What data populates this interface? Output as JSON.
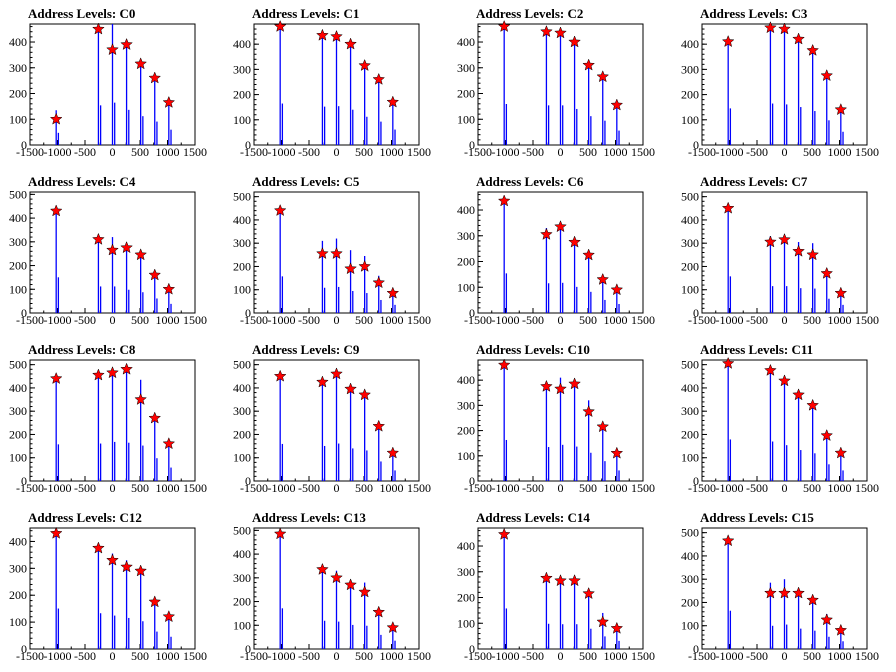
{
  "colors": {
    "spike": "#0000ff",
    "marker": "#ff0000",
    "axis": "#000000"
  },
  "chart_data": [
    {
      "title": "Address Levels: C0",
      "type": "bar",
      "xlim": [
        -1500,
        1500
      ],
      "ylim": [
        0,
        470
      ],
      "xticks": [
        -1500,
        -1000,
        -500,
        0,
        500,
        1000,
        1500
      ],
      "yticks": [
        0,
        100,
        200,
        300,
        400
      ],
      "spikes": [
        [
          -1024,
          135
        ],
        [
          -256,
          440
        ],
        [
          0,
          470
        ],
        [
          256,
          390
        ],
        [
          512,
          320
        ],
        [
          768,
          260
        ],
        [
          1024,
          170
        ]
      ],
      "markers": [
        [
          -1024,
          100
        ],
        [
          -256,
          450
        ],
        [
          0,
          370
        ],
        [
          256,
          390
        ],
        [
          512,
          315
        ],
        [
          768,
          260
        ],
        [
          1024,
          165
        ]
      ]
    },
    {
      "title": "Address Levels: C1",
      "type": "bar",
      "xlim": [
        -1500,
        1500
      ],
      "ylim": [
        0,
        480
      ],
      "xticks": [
        -1500,
        -1000,
        -500,
        0,
        500,
        1000,
        1500
      ],
      "yticks": [
        0,
        100,
        200,
        300,
        400
      ],
      "spikes": [
        [
          -1024,
          470
        ],
        [
          -256,
          435
        ],
        [
          0,
          440
        ],
        [
          256,
          400
        ],
        [
          512,
          320
        ],
        [
          768,
          265
        ],
        [
          1024,
          175
        ]
      ],
      "markers": [
        [
          -1024,
          470
        ],
        [
          -256,
          435
        ],
        [
          0,
          430
        ],
        [
          256,
          400
        ],
        [
          512,
          315
        ],
        [
          768,
          260
        ],
        [
          1024,
          170
        ]
      ]
    },
    {
      "title": "Address Levels: C2",
      "type": "bar",
      "xlim": [
        -1500,
        1500
      ],
      "ylim": [
        0,
        470
      ],
      "xticks": [
        -1500,
        -1000,
        -500,
        0,
        500,
        1000,
        1500
      ],
      "yticks": [
        0,
        100,
        200,
        300,
        400
      ],
      "spikes": [
        [
          -1024,
          455
        ],
        [
          -256,
          440
        ],
        [
          0,
          440
        ],
        [
          256,
          400
        ],
        [
          512,
          320
        ],
        [
          768,
          270
        ],
        [
          1024,
          160
        ]
      ],
      "markers": [
        [
          -1024,
          460
        ],
        [
          -256,
          440
        ],
        [
          0,
          435
        ],
        [
          256,
          400
        ],
        [
          512,
          310
        ],
        [
          768,
          265
        ],
        [
          1024,
          155
        ]
      ]
    },
    {
      "title": "Address Levels: C3",
      "type": "bar",
      "xlim": [
        -1500,
        1500
      ],
      "ylim": [
        0,
        480
      ],
      "xticks": [
        -1500,
        -1000,
        -500,
        0,
        500,
        1000,
        1500
      ],
      "yticks": [
        0,
        100,
        200,
        300,
        400
      ],
      "spikes": [
        [
          -1024,
          415
        ],
        [
          -256,
          470
        ],
        [
          0,
          460
        ],
        [
          256,
          430
        ],
        [
          512,
          385
        ],
        [
          768,
          280
        ],
        [
          1024,
          150
        ]
      ],
      "markers": [
        [
          -1024,
          410
        ],
        [
          -256,
          465
        ],
        [
          0,
          460
        ],
        [
          256,
          420
        ],
        [
          512,
          375
        ],
        [
          768,
          275
        ],
        [
          1024,
          140
        ]
      ]
    },
    {
      "title": "Address Levels: C4",
      "type": "bar",
      "xlim": [
        -1500,
        1500
      ],
      "ylim": [
        0,
        510
      ],
      "xticks": [
        -1500,
        -1000,
        -500,
        0,
        500,
        1000,
        1500
      ],
      "yticks": [
        0,
        100,
        200,
        300,
        400,
        500
      ],
      "spikes": [
        [
          -1024,
          430
        ],
        [
          -256,
          320
        ],
        [
          0,
          320
        ],
        [
          256,
          280
        ],
        [
          512,
          250
        ],
        [
          768,
          175
        ],
        [
          1024,
          110
        ]
      ],
      "markers": [
        [
          -1024,
          430
        ],
        [
          -256,
          310
        ],
        [
          0,
          265
        ],
        [
          256,
          275
        ],
        [
          512,
          245
        ],
        [
          768,
          160
        ],
        [
          1024,
          100
        ]
      ]
    },
    {
      "title": "Address Levels: C5",
      "type": "bar",
      "xlim": [
        -1500,
        1500
      ],
      "ylim": [
        0,
        520
      ],
      "xticks": [
        -1500,
        -1000,
        -500,
        0,
        500,
        1000,
        1500
      ],
      "yticks": [
        0,
        100,
        200,
        300,
        400,
        500
      ],
      "spikes": [
        [
          -1024,
          450
        ],
        [
          -256,
          310
        ],
        [
          0,
          320
        ],
        [
          256,
          270
        ],
        [
          512,
          245
        ],
        [
          768,
          160
        ],
        [
          1024,
          100
        ]
      ],
      "markers": [
        [
          -1024,
          440
        ],
        [
          -256,
          255
        ],
        [
          0,
          255
        ],
        [
          256,
          190
        ],
        [
          512,
          200
        ],
        [
          768,
          130
        ],
        [
          1024,
          85
        ]
      ]
    },
    {
      "title": "Address Levels: C6",
      "type": "bar",
      "xlim": [
        -1500,
        1500
      ],
      "ylim": [
        0,
        470
      ],
      "xticks": [
        -1500,
        -1000,
        -500,
        0,
        500,
        1000,
        1500
      ],
      "yticks": [
        0,
        100,
        200,
        300,
        400
      ],
      "spikes": [
        [
          -1024,
          440
        ],
        [
          -256,
          330
        ],
        [
          0,
          335
        ],
        [
          256,
          290
        ],
        [
          512,
          235
        ],
        [
          768,
          145
        ],
        [
          1024,
          100
        ]
      ],
      "markers": [
        [
          -1024,
          435
        ],
        [
          -256,
          305
        ],
        [
          0,
          335
        ],
        [
          256,
          275
        ],
        [
          512,
          225
        ],
        [
          768,
          130
        ],
        [
          1024,
          90
        ]
      ]
    },
    {
      "title": "Address Levels: C7",
      "type": "bar",
      "xlim": [
        -1500,
        1500
      ],
      "ylim": [
        0,
        520
      ],
      "xticks": [
        -1500,
        -1000,
        -500,
        0,
        500,
        1000,
        1500
      ],
      "yticks": [
        0,
        100,
        200,
        300,
        400,
        500
      ],
      "spikes": [
        [
          -1024,
          450
        ],
        [
          -256,
          330
        ],
        [
          0,
          330
        ],
        [
          256,
          305
        ],
        [
          512,
          300
        ],
        [
          768,
          175
        ],
        [
          1024,
          100
        ]
      ],
      "markers": [
        [
          -1024,
          450
        ],
        [
          -256,
          305
        ],
        [
          0,
          315
        ],
        [
          256,
          265
        ],
        [
          512,
          250
        ],
        [
          768,
          170
        ],
        [
          1024,
          85
        ]
      ]
    },
    {
      "title": "Address Levels: C8",
      "type": "bar",
      "xlim": [
        -1500,
        1500
      ],
      "ylim": [
        0,
        520
      ],
      "xticks": [
        -1500,
        -1000,
        -500,
        0,
        500,
        1000,
        1500
      ],
      "yticks": [
        0,
        100,
        200,
        300,
        400,
        500
      ],
      "spikes": [
        [
          -1024,
          450
        ],
        [
          -256,
          460
        ],
        [
          0,
          480
        ],
        [
          256,
          470
        ],
        [
          512,
          435
        ],
        [
          768,
          280
        ],
        [
          1024,
          165
        ]
      ],
      "markers": [
        [
          -1024,
          440
        ],
        [
          -256,
          455
        ],
        [
          0,
          465
        ],
        [
          256,
          480
        ],
        [
          512,
          350
        ],
        [
          768,
          270
        ],
        [
          1024,
          160
        ]
      ]
    },
    {
      "title": "Address Levels: C9",
      "type": "bar",
      "xlim": [
        -1500,
        1500
      ],
      "ylim": [
        0,
        520
      ],
      "xticks": [
        -1500,
        -1000,
        -500,
        0,
        500,
        1000,
        1500
      ],
      "yticks": [
        0,
        100,
        200,
        300,
        400,
        500
      ],
      "spikes": [
        [
          -1024,
          455
        ],
        [
          -256,
          430
        ],
        [
          0,
          460
        ],
        [
          256,
          400
        ],
        [
          512,
          375
        ],
        [
          768,
          240
        ],
        [
          1024,
          130
        ]
      ],
      "markers": [
        [
          -1024,
          450
        ],
        [
          -256,
          425
        ],
        [
          0,
          460
        ],
        [
          256,
          395
        ],
        [
          512,
          370
        ],
        [
          768,
          235
        ],
        [
          1024,
          120
        ]
      ]
    },
    {
      "title": "Address Levels: C10",
      "type": "bar",
      "xlim": [
        -1500,
        1500
      ],
      "ylim": [
        0,
        480
      ],
      "xticks": [
        -1500,
        -1000,
        -500,
        0,
        500,
        1000,
        1500
      ],
      "yticks": [
        0,
        100,
        200,
        300,
        400
      ],
      "spikes": [
        [
          -1024,
          465
        ],
        [
          -256,
          385
        ],
        [
          0,
          410
        ],
        [
          256,
          390
        ],
        [
          512,
          320
        ],
        [
          768,
          225
        ],
        [
          1024,
          120
        ]
      ],
      "markers": [
        [
          -1024,
          460
        ],
        [
          -256,
          375
        ],
        [
          0,
          365
        ],
        [
          256,
          385
        ],
        [
          512,
          275
        ],
        [
          768,
          215
        ],
        [
          1024,
          110
        ]
      ]
    },
    {
      "title": "Address Levels: C11",
      "type": "bar",
      "xlim": [
        -1500,
        1500
      ],
      "ylim": [
        0,
        520
      ],
      "xticks": [
        -1500,
        -1000,
        -500,
        0,
        500,
        1000,
        1500
      ],
      "yticks": [
        0,
        100,
        200,
        300,
        400,
        500
      ],
      "spikes": [
        [
          -1024,
          510
        ],
        [
          -256,
          485
        ],
        [
          0,
          440
        ],
        [
          256,
          380
        ],
        [
          512,
          340
        ],
        [
          768,
          205
        ],
        [
          1024,
          130
        ]
      ],
      "markers": [
        [
          -1024,
          505
        ],
        [
          -256,
          475
        ],
        [
          0,
          430
        ],
        [
          256,
          370
        ],
        [
          512,
          325
        ],
        [
          768,
          195
        ],
        [
          1024,
          120
        ]
      ]
    },
    {
      "title": "Address Levels: C12",
      "type": "bar",
      "xlim": [
        -1500,
        1500
      ],
      "ylim": [
        0,
        450
      ],
      "xticks": [
        -1500,
        -1000,
        -500,
        0,
        500,
        1000,
        1500
      ],
      "yticks": [
        0,
        100,
        200,
        300,
        400
      ],
      "spikes": [
        [
          -1024,
          430
        ],
        [
          -256,
          380
        ],
        [
          0,
          355
        ],
        [
          256,
          330
        ],
        [
          512,
          295
        ],
        [
          768,
          185
        ],
        [
          1024,
          130
        ]
      ],
      "markers": [
        [
          -1024,
          430
        ],
        [
          -256,
          375
        ],
        [
          0,
          330
        ],
        [
          256,
          305
        ],
        [
          512,
          290
        ],
        [
          768,
          175
        ],
        [
          1024,
          120
        ]
      ]
    },
    {
      "title": "Address Levels: C13",
      "type": "bar",
      "xlim": [
        -1500,
        1500
      ],
      "ylim": [
        0,
        510
      ],
      "xticks": [
        -1500,
        -1000,
        -500,
        0,
        500,
        1000,
        1500
      ],
      "yticks": [
        0,
        100,
        200,
        300,
        400,
        500
      ],
      "spikes": [
        [
          -1024,
          490
        ],
        [
          -256,
          340
        ],
        [
          0,
          330
        ],
        [
          256,
          290
        ],
        [
          512,
          280
        ],
        [
          768,
          170
        ],
        [
          1024,
          100
        ]
      ],
      "markers": [
        [
          -1024,
          485
        ],
        [
          -256,
          335
        ],
        [
          0,
          300
        ],
        [
          256,
          270
        ],
        [
          512,
          240
        ],
        [
          768,
          155
        ],
        [
          1024,
          90
        ]
      ]
    },
    {
      "title": "Address Levels: C14",
      "type": "bar",
      "xlim": [
        -1500,
        1500
      ],
      "ylim": [
        0,
        470
      ],
      "xticks": [
        -1500,
        -1000,
        -500,
        0,
        500,
        1000,
        1500
      ],
      "yticks": [
        0,
        100,
        200,
        300,
        400
      ],
      "spikes": [
        [
          -1024,
          450
        ],
        [
          -256,
          280
        ],
        [
          0,
          275
        ],
        [
          256,
          275
        ],
        [
          512,
          225
        ],
        [
          768,
          140
        ],
        [
          1024,
          90
        ]
      ],
      "markers": [
        [
          -1024,
          445
        ],
        [
          -256,
          275
        ],
        [
          0,
          265
        ],
        [
          256,
          265
        ],
        [
          512,
          215
        ],
        [
          768,
          105
        ],
        [
          1024,
          80
        ]
      ]
    },
    {
      "title": "Address Levels: C15",
      "type": "bar",
      "xlim": [
        -1500,
        1500
      ],
      "ylim": [
        0,
        520
      ],
      "xticks": [
        -1500,
        -1000,
        -500,
        0,
        500,
        1000,
        1500
      ],
      "yticks": [
        0,
        100,
        200,
        300,
        400,
        500
      ],
      "spikes": [
        [
          -1024,
          470
        ],
        [
          -256,
          285
        ],
        [
          0,
          300
        ],
        [
          256,
          250
        ],
        [
          512,
          225
        ],
        [
          768,
          150
        ],
        [
          1024,
          95
        ]
      ],
      "markers": [
        [
          -1024,
          465
        ],
        [
          -256,
          240
        ],
        [
          0,
          240
        ],
        [
          256,
          240
        ],
        [
          512,
          210
        ],
        [
          768,
          125
        ],
        [
          1024,
          80
        ]
      ]
    }
  ]
}
